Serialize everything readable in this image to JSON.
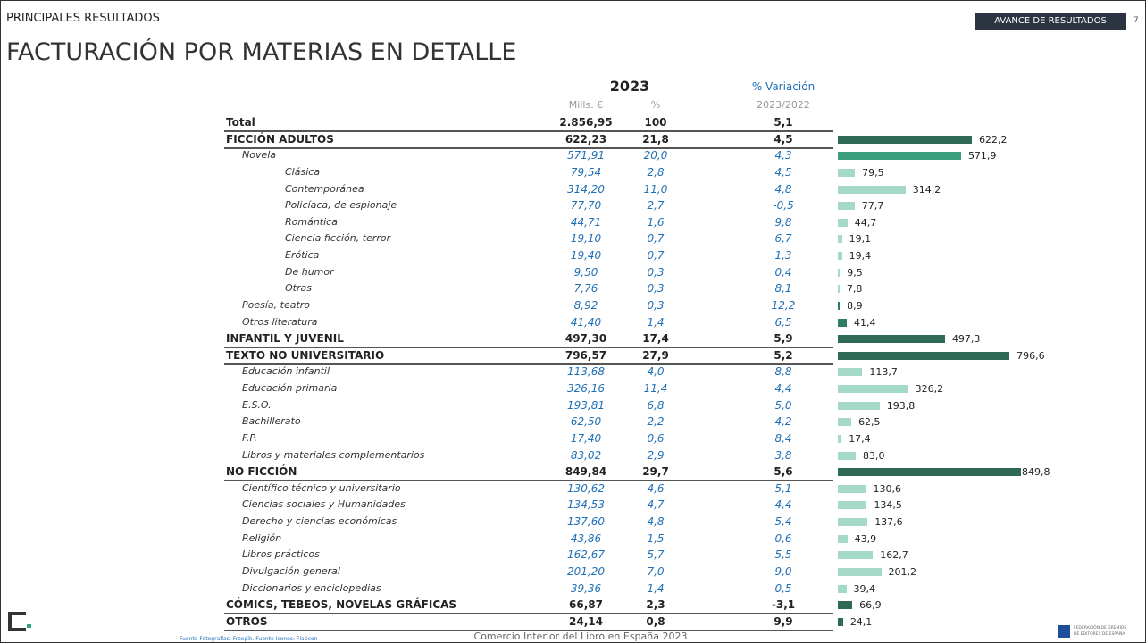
{
  "header": {
    "section": "PRINCIPALES RESULTADOS",
    "title": "FACTURACIÓN POR MATERIAS EN DETALLE",
    "badge": "AVANCE DE RESULTADOS",
    "page": "7"
  },
  "table": {
    "year": "2023",
    "variation_title": "% Variación",
    "col_mills": "Mills. €",
    "col_share": "%",
    "col_period": "2023/2022",
    "rows": [
      {
        "label": "Total",
        "level": 0,
        "mills": "2.856,95",
        "share": "100",
        "variation": "5,1"
      },
      {
        "label": "FICCIÓN ADULTOS",
        "level": 0,
        "mills": "622,23",
        "share": "21,8",
        "variation": "4,5",
        "bar": {
          "value": 622.2,
          "label": "622,2"
        },
        "color": "#2e6a56"
      },
      {
        "label": "Novela",
        "level": 1,
        "mills": "571,91",
        "share": "20,0",
        "variation": "4,3",
        "bar": {
          "value": 571.9,
          "label": "571,9"
        },
        "color": "#3c9e7d"
      },
      {
        "label": "Clásica",
        "level": 2,
        "mills": "79,54",
        "share": "2,8",
        "variation": "4,5",
        "bar": {
          "value": 79.5,
          "label": "79,5"
        },
        "color": "#a3d9c6"
      },
      {
        "label": "Contemporánea",
        "level": 2,
        "mills": "314,20",
        "share": "11,0",
        "variation": "4,8",
        "bar": {
          "value": 314.2,
          "label": "314,2"
        },
        "color": "#a3d9c6"
      },
      {
        "label": "Policíaca, de espionaje",
        "level": 2,
        "mills": "77,70",
        "share": "2,7",
        "variation": "-0,5",
        "bar": {
          "value": 77.7,
          "label": "77,7"
        },
        "color": "#a3d9c6"
      },
      {
        "label": "Romántica",
        "level": 2,
        "mills": "44,71",
        "share": "1,6",
        "variation": "9,8",
        "bar": {
          "value": 44.7,
          "label": "44,7"
        },
        "color": "#a3d9c6"
      },
      {
        "label": "Ciencia ficción, terror",
        "level": 2,
        "mills": "19,10",
        "share": "0,7",
        "variation": "6,7",
        "bar": {
          "value": 19.1,
          "label": "19,1"
        },
        "color": "#a3d9c6"
      },
      {
        "label": "Erótica",
        "level": 2,
        "mills": "19,40",
        "share": "0,7",
        "variation": "1,3",
        "bar": {
          "value": 19.4,
          "label": "19,4"
        },
        "color": "#a3d9c6"
      },
      {
        "label": "De humor",
        "level": 2,
        "mills": "9,50",
        "share": "0,3",
        "variation": "0,4",
        "bar": {
          "value": 9.5,
          "label": "9,5"
        },
        "color": "#a3d9c6"
      },
      {
        "label": "Otras",
        "level": 2,
        "mills": "7,76",
        "share": "0,3",
        "variation": "8,1",
        "bar": {
          "value": 7.8,
          "label": "7,8"
        },
        "color": "#a3d9c6"
      },
      {
        "label": "Poesía, teatro",
        "level": 1,
        "mills": "8,92",
        "share": "0,3",
        "variation": "12,2",
        "bar": {
          "value": 8.9,
          "label": "8,9"
        },
        "color": "#2e7d62"
      },
      {
        "label": "Otros literatura",
        "level": 1,
        "mills": "41,40",
        "share": "1,4",
        "variation": "6,5",
        "bar": {
          "value": 41.4,
          "label": "41,4"
        },
        "color": "#2e7d62"
      },
      {
        "label": "INFANTIL Y JUVENIL",
        "level": 0,
        "mills": "497,30",
        "share": "17,4",
        "variation": "5,9",
        "bar": {
          "value": 497.3,
          "label": "497,3"
        },
        "color": "#2e6a56"
      },
      {
        "label": "TEXTO NO UNIVERSITARIO",
        "level": 0,
        "mills": "796,57",
        "share": "27,9",
        "variation": "5,2",
        "bar": {
          "value": 796.6,
          "label": "796,6"
        },
        "color": "#2e6a56"
      },
      {
        "label": "Educación infantil",
        "level": 1,
        "mills": "113,68",
        "share": "4,0",
        "variation": "8,8",
        "bar": {
          "value": 113.7,
          "label": "113,7"
        },
        "color": "#a3d9c6"
      },
      {
        "label": "Educación primaria",
        "level": 1,
        "mills": "326,16",
        "share": "11,4",
        "variation": "4,4",
        "bar": {
          "value": 326.2,
          "label": "326,2"
        },
        "color": "#a3d9c6"
      },
      {
        "label": "E.S.O.",
        "level": 1,
        "mills": "193,81",
        "share": "6,8",
        "variation": "5,0",
        "bar": {
          "value": 193.8,
          "label": "193,8"
        },
        "color": "#a3d9c6"
      },
      {
        "label": "Bachillerato",
        "level": 1,
        "mills": "62,50",
        "share": "2,2",
        "variation": "4,2",
        "bar": {
          "value": 62.5,
          "label": "62,5"
        },
        "color": "#a3d9c6"
      },
      {
        "label": "F.P.",
        "level": 1,
        "mills": "17,40",
        "share": "0,6",
        "variation": "8,4",
        "bar": {
          "value": 17.4,
          "label": "17,4"
        },
        "color": "#a3d9c6"
      },
      {
        "label": "Libros y materiales complementarios",
        "level": 1,
        "mills": "83,02",
        "share": "2,9",
        "variation": "3,8",
        "bar": {
          "value": 83.0,
          "label": "83,0"
        },
        "color": "#a3d9c6"
      },
      {
        "label": "NO FICCIÓN",
        "level": 0,
        "mills": "849,84",
        "share": "29,7",
        "variation": "5,6",
        "bar": {
          "value": 849.8,
          "label": "849,8"
        },
        "color": "#2e6a56"
      },
      {
        "label": "Científico técnico y universitario",
        "level": 1,
        "mills": "130,62",
        "share": "4,6",
        "variation": "5,1",
        "bar": {
          "value": 130.6,
          "label": "130,6"
        },
        "color": "#a3d9c6"
      },
      {
        "label": "Ciencias sociales y Humanidades",
        "level": 1,
        "mills": "134,53",
        "share": "4,7",
        "variation": "4,4",
        "bar": {
          "value": 134.5,
          "label": "134,5"
        },
        "color": "#a3d9c6"
      },
      {
        "label": "Derecho y ciencias económicas",
        "level": 1,
        "mills": "137,60",
        "share": "4,8",
        "variation": "5,4",
        "bar": {
          "value": 137.6,
          "label": "137,6"
        },
        "color": "#a3d9c6"
      },
      {
        "label": "Religión",
        "level": 1,
        "mills": "43,86",
        "share": "1,5",
        "variation": "0,6",
        "bar": {
          "value": 43.9,
          "label": "43,9"
        },
        "color": "#a3d9c6"
      },
      {
        "label": "Libros prácticos",
        "level": 1,
        "mills": "162,67",
        "share": "5,7",
        "variation": "5,5",
        "bar": {
          "value": 162.7,
          "label": "162,7"
        },
        "color": "#a3d9c6"
      },
      {
        "label": "Divulgación general",
        "level": 1,
        "mills": "201,20",
        "share": "7,0",
        "variation": "9,0",
        "bar": {
          "value": 201.2,
          "label": "201,2"
        },
        "color": "#a3d9c6"
      },
      {
        "label": "Diccionarios y enciclopedias",
        "level": 1,
        "mills": "39,36",
        "share": "1,4",
        "variation": "0,5",
        "bar": {
          "value": 39.4,
          "label": "39,4"
        },
        "color": "#a3d9c6"
      },
      {
        "label": "CÓMICS, TEBEOS, NOVELAS GRÁFICAS",
        "level": 0,
        "mills": "66,87",
        "share": "2,3",
        "variation": "-3,1",
        "bar": {
          "value": 66.9,
          "label": "66,9"
        },
        "color": "#2e6a56"
      },
      {
        "label": "OTROS",
        "level": 0,
        "mills": "24,14",
        "share": "0,8",
        "variation": "9,9",
        "bar": {
          "value": 24.1,
          "label": "24,1"
        },
        "color": "#2e6a56"
      }
    ]
  },
  "footer": {
    "center": "Comercio Interior del Libro en España 2023",
    "source": "Fuente Fotografías: Freepik. Fuente Iconos: Flaticon",
    "logo_line1": "FEDERACIÓN DE GREMIOS",
    "logo_line2": "DE EDITORES DE ESPAÑA"
  }
}
